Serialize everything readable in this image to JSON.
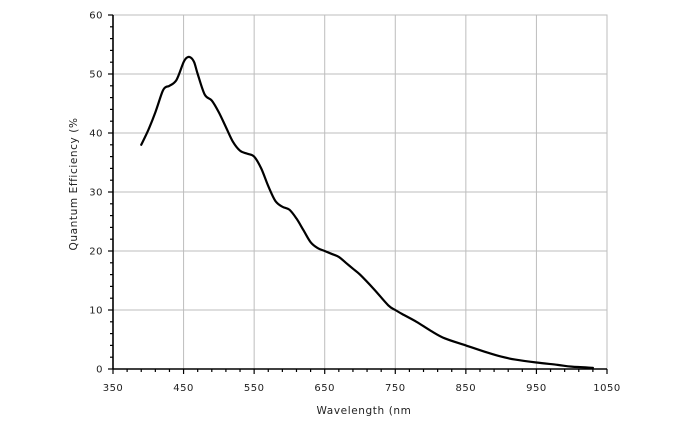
{
  "chart_data": {
    "type": "line",
    "title": "",
    "xlabel": "Wavelength (nm",
    "ylabel": "Quantum Efficiency (%",
    "xlim": [
      350,
      1050
    ],
    "ylim": [
      0,
      60
    ],
    "x_ticks": [
      350,
      450,
      550,
      650,
      750,
      850,
      950,
      1050
    ],
    "y_ticks": [
      0,
      10,
      20,
      30,
      40,
      50,
      60
    ],
    "grid": true,
    "legend": "none",
    "series": [
      {
        "color": "#000000",
        "x": [
          390,
          400,
          410,
          420,
          425,
          430,
          440,
          450,
          455,
          460,
          465,
          470,
          480,
          490,
          500,
          510,
          520,
          530,
          540,
          550,
          560,
          570,
          580,
          590,
          600,
          610,
          620,
          630,
          640,
          650,
          660,
          670,
          680,
          690,
          700,
          720,
          740,
          750,
          760,
          780,
          800,
          820,
          850,
          880,
          900,
          920,
          950,
          980,
          1000,
          1030
        ],
        "y": [
          38,
          40.5,
          43.5,
          47,
          47.8,
          48,
          49,
          52,
          52.8,
          52.8,
          52,
          50,
          46.5,
          45.5,
          43.5,
          41,
          38.5,
          37,
          36.5,
          36,
          34,
          31,
          28.5,
          27.5,
          27,
          25.5,
          23.5,
          21.5,
          20.5,
          20,
          19.5,
          19,
          18,
          17,
          16,
          13.5,
          10.8,
          10,
          9.3,
          8,
          6.5,
          5.2,
          4,
          2.8,
          2.1,
          1.6,
          1.1,
          0.7,
          0.4,
          0.2
        ]
      }
    ]
  }
}
